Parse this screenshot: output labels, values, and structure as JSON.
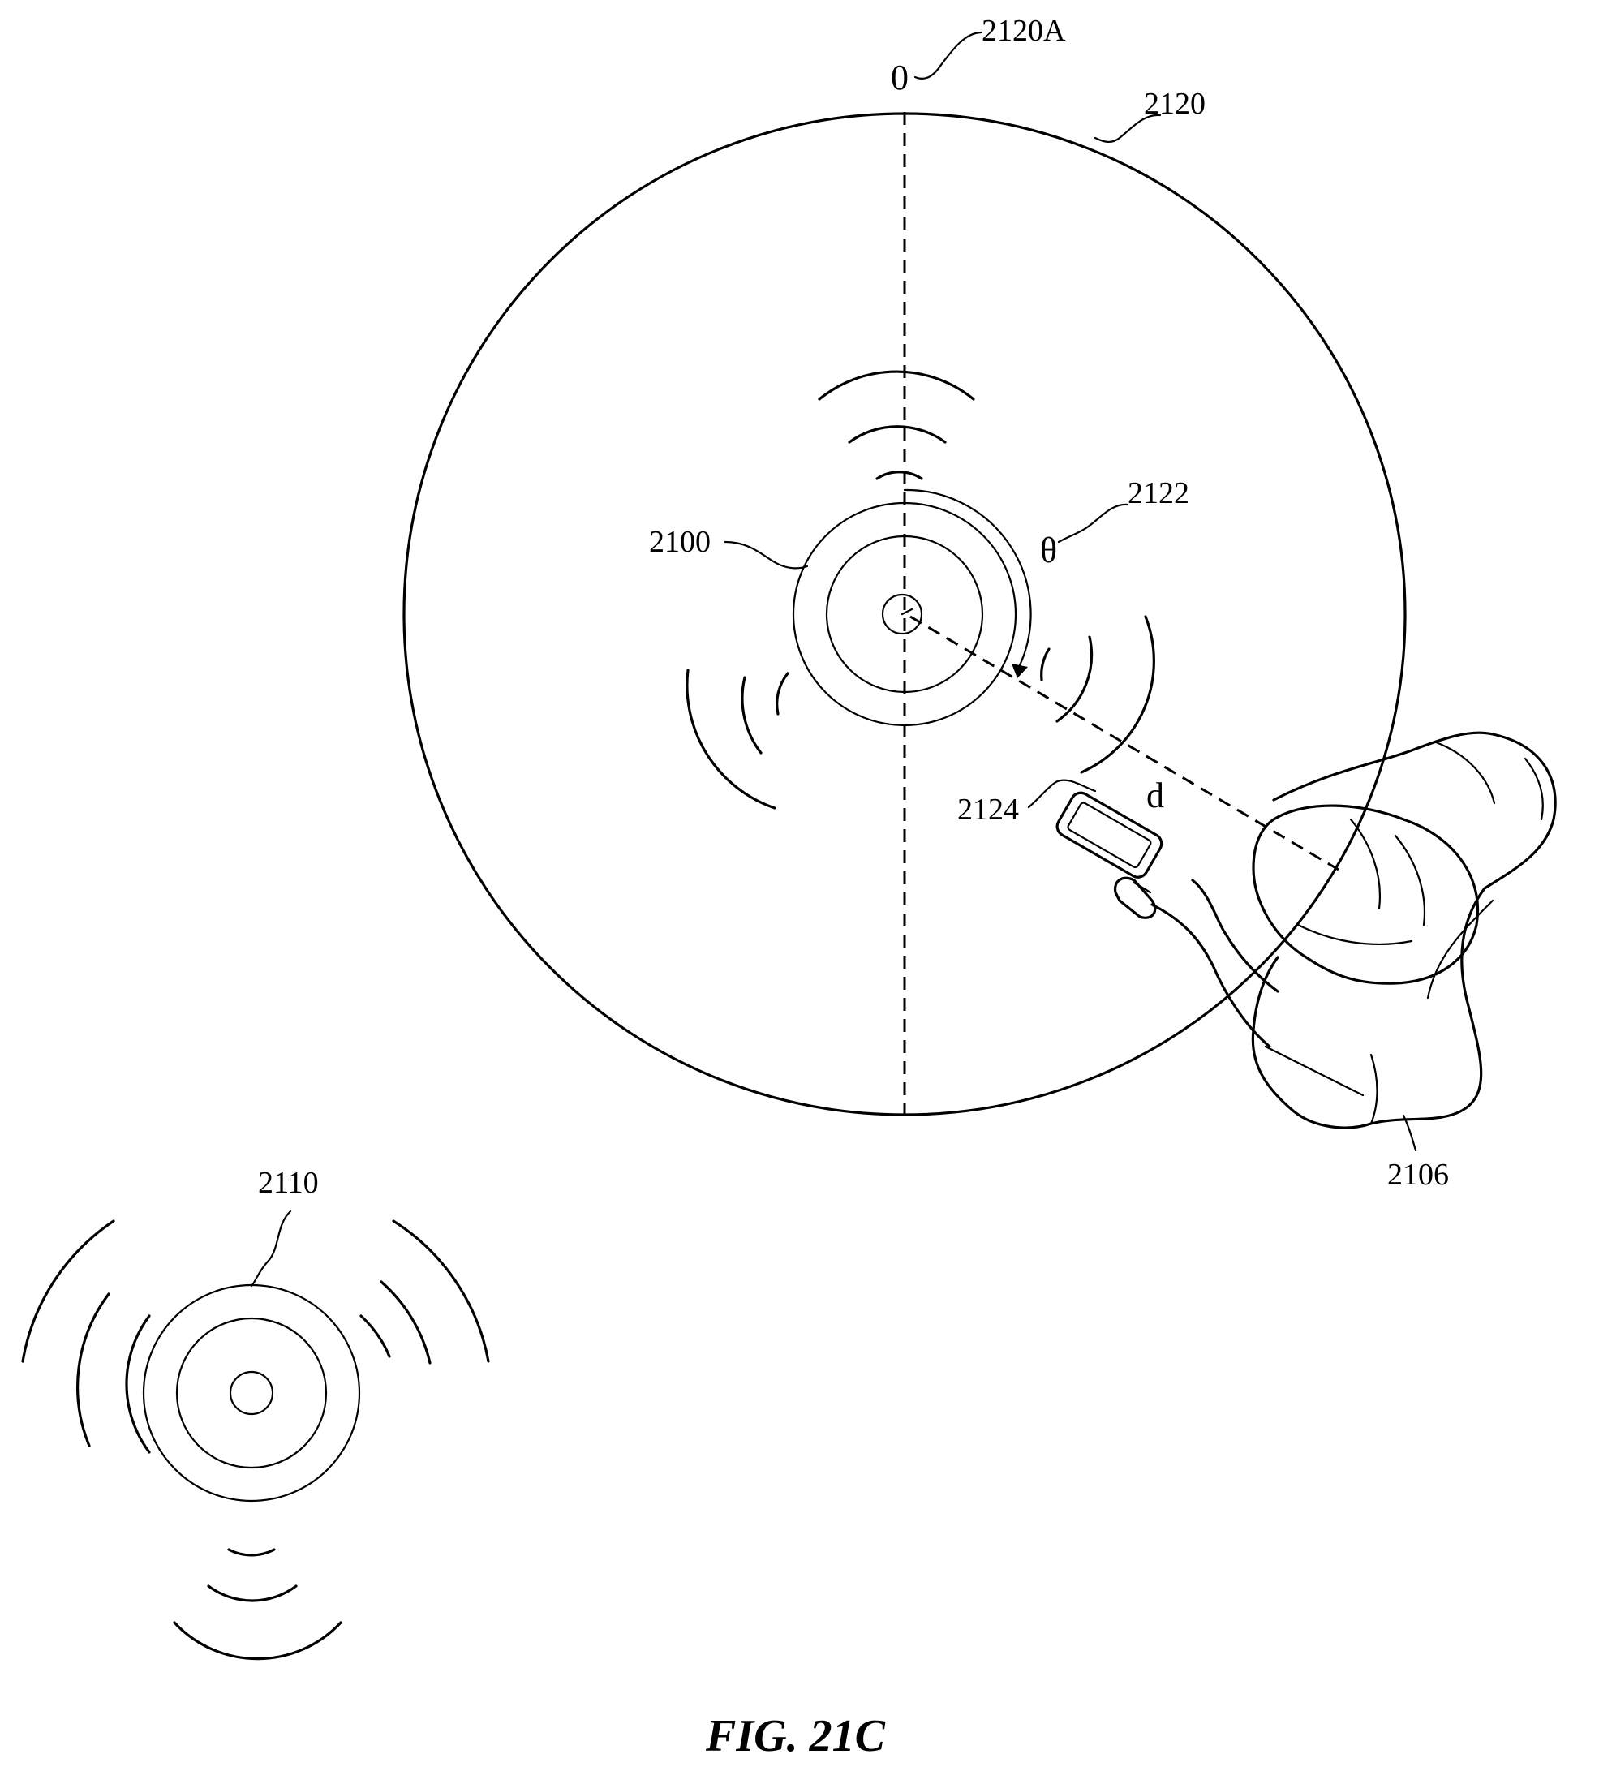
{
  "figure": {
    "caption": "FIG. 21C"
  },
  "labels": {
    "zone_boundary": "2120",
    "zero_reference_line": "2120A",
    "angle": "2122",
    "primary_device": "2100",
    "handheld_device": "2124",
    "user": "2106",
    "secondary_device": "2110"
  },
  "symbols": {
    "zero_mark": "0",
    "theta": "θ",
    "distance": "d"
  }
}
